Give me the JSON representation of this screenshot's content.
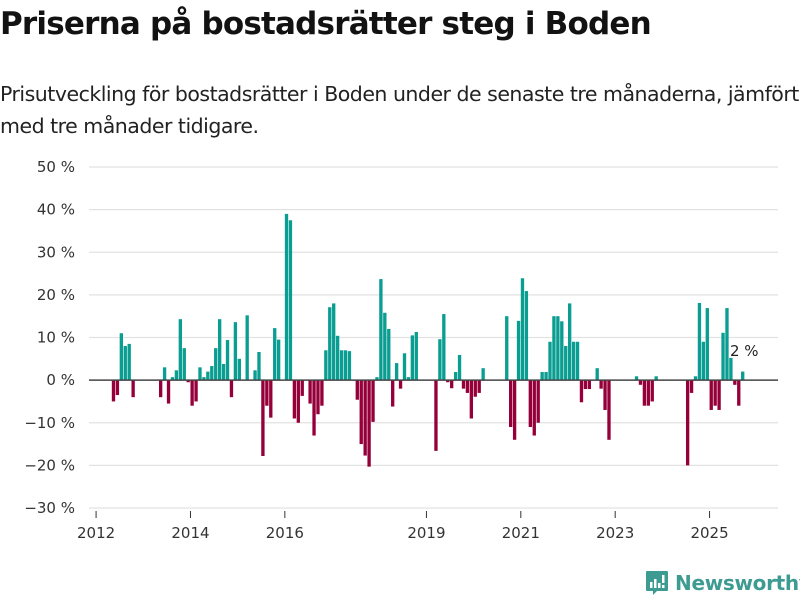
{
  "header": {
    "title": "Priserna på bostadsrätter steg i Boden",
    "subtitle": "Prisutveckling för bostadsrätter i Boden under de senaste tre månaderna, jämfört med tre månader tidigare."
  },
  "brand": {
    "name": "Newsworthy",
    "icon": "bar-chart-logo-icon",
    "color": "#3e9b92"
  },
  "colors": {
    "positive": "#0a9d91",
    "negative": "#96003a",
    "zero_line": "#444444",
    "grid": "#e2e2e2"
  },
  "chart_data": {
    "type": "bar",
    "title": "Priserna på bostadsrätter steg i Boden",
    "xlabel": "",
    "ylabel": "",
    "ylim": [
      -30,
      50
    ],
    "yticks": [
      50,
      40,
      30,
      20,
      10,
      0,
      -10,
      -20,
      -30
    ],
    "ytick_labels": [
      "50 %",
      "40 %",
      "30 %",
      "20 %",
      "10 %",
      "0 %",
      "−10 %",
      "−20 %",
      "−30 %"
    ],
    "xticks": [
      {
        "label": "2012",
        "year": 2012
      },
      {
        "label": "2014",
        "year": 2014
      },
      {
        "label": "2016",
        "year": 2016
      },
      {
        "label": "2019",
        "year": 2019
      },
      {
        "label": "2021",
        "year": 2021
      },
      {
        "label": "2023",
        "year": 2023
      },
      {
        "label": "2025",
        "year": 2025
      }
    ],
    "x_range_years": [
      2011.85,
      2026.45
    ],
    "grid": true,
    "unit": "%",
    "series_start": "2012-05",
    "frequency": "monthly",
    "values": [
      -5,
      -3.5,
      11,
      8,
      8.5,
      -4,
      null,
      null,
      null,
      null,
      null,
      null,
      -4,
      3,
      -5.5,
      0.7,
      2.3,
      14.3,
      7.5,
      -0.5,
      -6,
      -5,
      3,
      0.7,
      2,
      3.3,
      7.5,
      14.3,
      3.8,
      9.4,
      -4,
      13.6,
      5,
      null,
      15.2,
      null,
      2.3,
      6.6,
      -17.8,
      -6,
      -8.8,
      12.2,
      9.5,
      null,
      39,
      37.5,
      -9,
      -10,
      -3.7,
      null,
      -5.5,
      -13,
      -8,
      -6,
      7,
      17.1,
      18,
      10.4,
      7,
      7,
      6.8,
      null,
      -4.6,
      -15,
      -17.7,
      -20.3,
      -9.8,
      0.7,
      23.7,
      15.8,
      12,
      -6.2,
      4,
      -2,
      6.3,
      0.7,
      10.5,
      11.3,
      null,
      null,
      null,
      null,
      -16.6,
      9.6,
      15.5,
      -0.5,
      -1.9,
      1.9,
      5.9,
      -2,
      -3,
      -9,
      -3.9,
      -3,
      2.8,
      null,
      null,
      null,
      null,
      null,
      15,
      -11,
      -14,
      13.9,
      23.9,
      20.9,
      -11,
      -13,
      -10,
      1.9,
      1.9,
      9,
      15,
      15,
      13.8,
      8,
      18,
      9,
      9,
      -5.2,
      -2.1,
      -2.1,
      null,
      2.8,
      -2,
      -7,
      -14,
      null,
      null,
      null,
      null,
      null,
      null,
      0.9,
      -1.1,
      -6,
      -6,
      -5,
      0.9,
      null,
      null,
      null,
      null,
      null,
      null,
      null,
      -20,
      -3,
      0.9,
      18.1,
      9,
      16.9,
      -7,
      -6,
      -7,
      11.1,
      16.9,
      5.2,
      -1.1,
      -6,
      2
    ],
    "annotations": [
      {
        "text": "2 %",
        "target": "last-value"
      }
    ]
  }
}
